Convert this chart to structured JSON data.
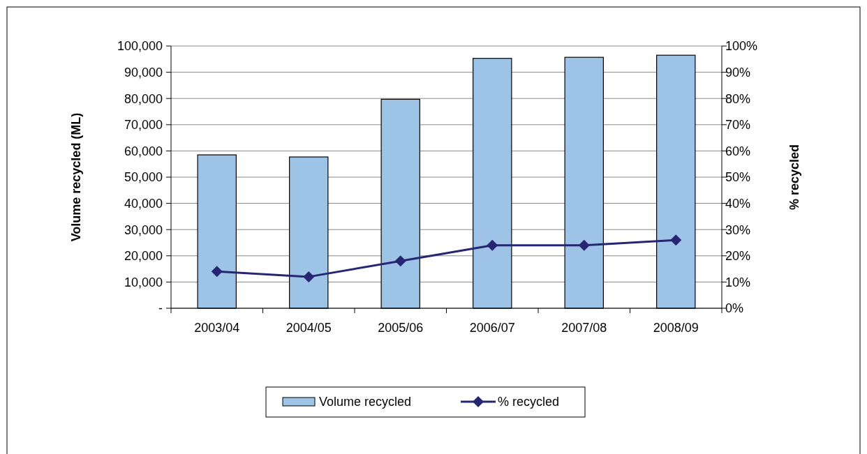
{
  "chart_data": {
    "type": "bar",
    "categories": [
      "2003/04",
      "2004/05",
      "2005/06",
      "2006/07",
      "2007/08",
      "2008/09"
    ],
    "series": [
      {
        "name": "Volume recycled",
        "color": "#9dc3e6",
        "values": [
          58500,
          57700,
          79700,
          95300,
          95700,
          96500
        ]
      },
      {
        "name": "% recycled",
        "type": "line",
        "axis": "y2",
        "color": "#262673",
        "values": [
          14,
          12,
          18,
          24,
          24,
          26
        ]
      }
    ],
    "ylabel": "Volume recycled (ML)",
    "y2label": "% recycled",
    "ylim": [
      0,
      100000
    ],
    "yticks": [
      {
        "value": 0,
        "label": "-"
      },
      {
        "value": 10000,
        "label": "10,000"
      },
      {
        "value": 20000,
        "label": "20,000"
      },
      {
        "value": 30000,
        "label": "30,000"
      },
      {
        "value": 40000,
        "label": "40,000"
      },
      {
        "value": 50000,
        "label": "50,000"
      },
      {
        "value": 60000,
        "label": "60,000"
      },
      {
        "value": 70000,
        "label": "70,000"
      },
      {
        "value": 80000,
        "label": "80,000"
      },
      {
        "value": 90000,
        "label": "90,000"
      },
      {
        "value": 100000,
        "label": "100,000"
      }
    ],
    "y2lim": [
      0,
      100
    ],
    "y2ticks": [
      {
        "value": 0,
        "label": "0%"
      },
      {
        "value": 10,
        "label": "10%"
      },
      {
        "value": 20,
        "label": "20%"
      },
      {
        "value": 30,
        "label": "30%"
      },
      {
        "value": 40,
        "label": "40%"
      },
      {
        "value": 50,
        "label": "50%"
      },
      {
        "value": 60,
        "label": "60%"
      },
      {
        "value": 70,
        "label": "70%"
      },
      {
        "value": 80,
        "label": "80%"
      },
      {
        "value": 90,
        "label": "90%"
      },
      {
        "value": 100,
        "label": "100%"
      }
    ],
    "grid": "y",
    "legend": "bottom",
    "marker": "diamond"
  }
}
